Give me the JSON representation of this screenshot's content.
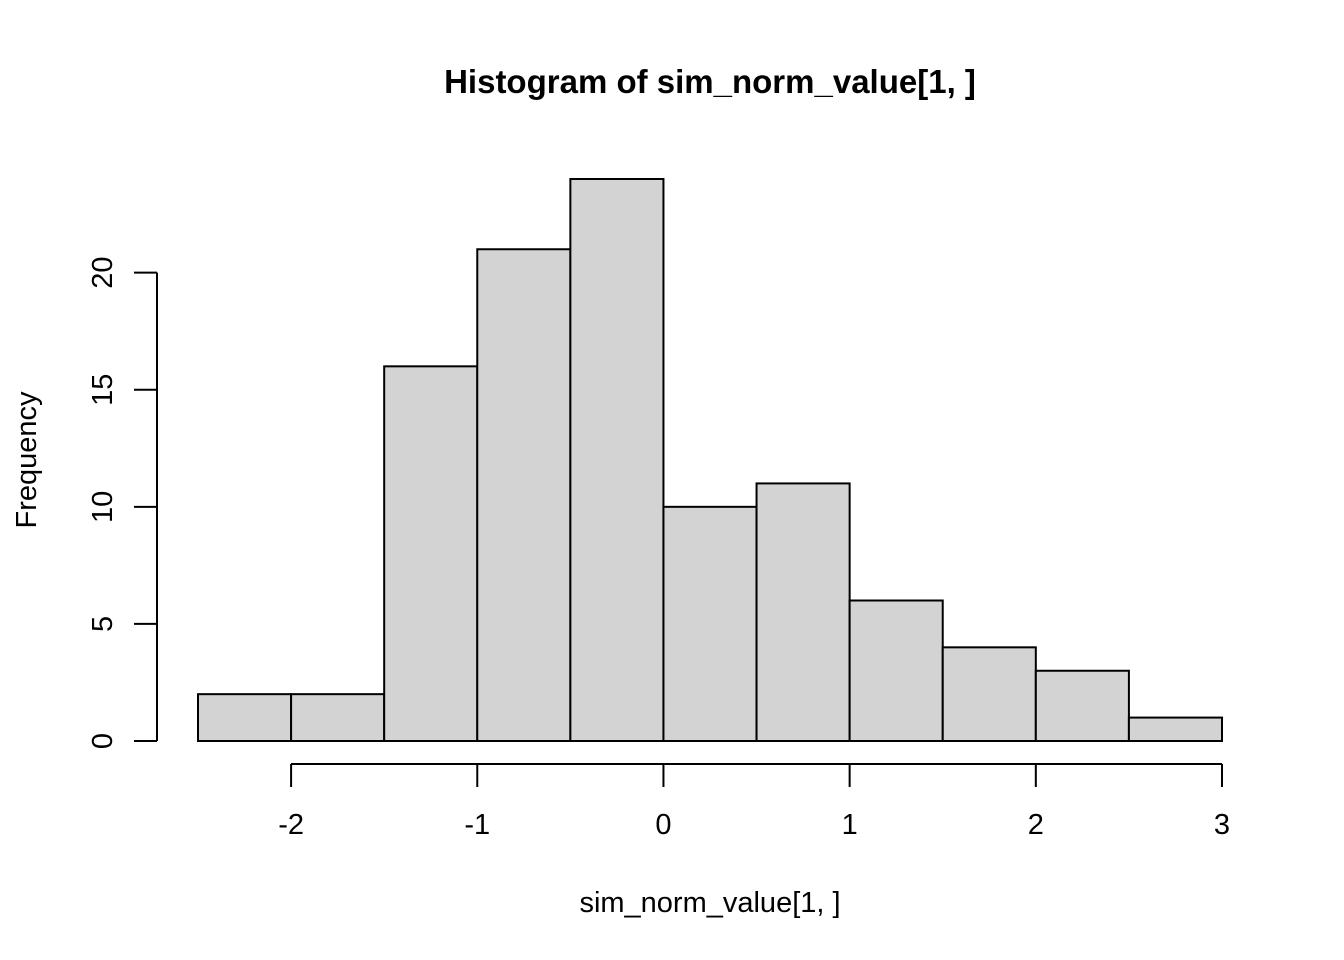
{
  "chart_data": {
    "type": "bar",
    "title": "Histogram of sim_norm_value[1, ]",
    "xlabel": "sim_norm_value[1, ]",
    "ylabel": "Frequency",
    "bins": [
      {
        "from": -2.5,
        "to": -2.0,
        "count": 2
      },
      {
        "from": -2.0,
        "to": -1.5,
        "count": 2
      },
      {
        "from": -1.5,
        "to": -1.0,
        "count": 16
      },
      {
        "from": -1.0,
        "to": -0.5,
        "count": 21
      },
      {
        "from": -0.5,
        "to": 0.0,
        "count": 24
      },
      {
        "from": 0.0,
        "to": 0.5,
        "count": 10
      },
      {
        "from": 0.5,
        "to": 1.0,
        "count": 11
      },
      {
        "from": 1.0,
        "to": 1.5,
        "count": 6
      },
      {
        "from": 1.5,
        "to": 2.0,
        "count": 4
      },
      {
        "from": 2.0,
        "to": 2.5,
        "count": 3
      },
      {
        "from": 2.5,
        "to": 3.0,
        "count": 1
      }
    ],
    "x_ticks": [
      -2,
      -1,
      0,
      1,
      2,
      3
    ],
    "x_tick_labels": [
      "-2",
      "-1",
      "0",
      "1",
      "2",
      "3"
    ],
    "y_ticks": [
      0,
      5,
      10,
      15,
      20
    ],
    "y_tick_labels": [
      "0",
      "5",
      "10",
      "15",
      "20"
    ],
    "xlim": [
      -2.5,
      3.0
    ],
    "ylim": [
      0,
      24
    ],
    "grid": false,
    "legend": "none",
    "colors": {
      "bar_fill": "#d3d3d3",
      "bar_stroke": "#000000",
      "axis": "#000000",
      "background": "#ffffff"
    }
  }
}
